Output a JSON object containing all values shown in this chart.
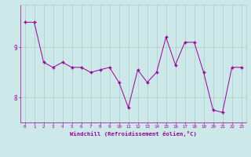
{
  "x": [
    0,
    1,
    2,
    3,
    4,
    5,
    6,
    7,
    8,
    9,
    10,
    11,
    12,
    13,
    14,
    15,
    16,
    17,
    18,
    19,
    20,
    21,
    22,
    23
  ],
  "y": [
    9.5,
    9.5,
    8.7,
    8.6,
    8.7,
    8.6,
    8.6,
    8.5,
    8.55,
    8.6,
    8.3,
    7.8,
    8.55,
    8.3,
    8.5,
    9.2,
    8.65,
    9.1,
    9.1,
    8.5,
    7.75,
    7.7,
    8.6,
    8.6
  ],
  "line_color": "#990099",
  "marker": "+",
  "bg_color": "#cce8e8",
  "grid_color": "#b0c8c8",
  "xlabel": "Windchill (Refroidissement éolien,°C)",
  "xlabel_color": "#990099",
  "tick_color": "#990099",
  "ylim": [
    7.5,
    9.85
  ],
  "xlim": [
    -0.5,
    23.5
  ],
  "yticks": [
    8,
    9
  ],
  "xticks": [
    0,
    1,
    2,
    3,
    4,
    5,
    6,
    7,
    8,
    9,
    10,
    11,
    12,
    13,
    14,
    15,
    16,
    17,
    18,
    19,
    20,
    21,
    22,
    23
  ]
}
